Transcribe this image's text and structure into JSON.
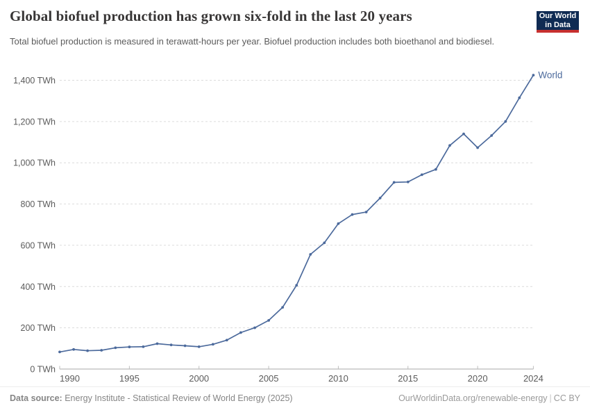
{
  "header": {
    "title": "Global biofuel production has grown six-fold in the last 20 years",
    "subtitle": "Total biofuel production is measured in terawatt-hours per year. Biofuel production includes both bioethanol and biodiesel.",
    "logo": {
      "line1": "Our World",
      "line2": "in Data"
    }
  },
  "footer": {
    "datasource_label": "Data source:",
    "datasource_text": " Energy Institute - Statistical Review of World Energy (2025)",
    "url": "OurWorldinData.org/renewable-energy",
    "separator": "|",
    "license": "CC BY"
  },
  "chart_data": {
    "type": "line",
    "title": "Global biofuel production has grown six-fold in the last 20 years",
    "unit": "TWh",
    "x": [
      1990,
      1991,
      1992,
      1993,
      1994,
      1995,
      1996,
      1997,
      1998,
      1999,
      2000,
      2001,
      2002,
      2003,
      2004,
      2005,
      2006,
      2007,
      2008,
      2009,
      2010,
      2011,
      2012,
      2013,
      2014,
      2015,
      2016,
      2017,
      2018,
      2019,
      2020,
      2021,
      2022,
      2023,
      2024
    ],
    "series": [
      {
        "name": "World",
        "values": [
          83,
          95,
          89,
          91,
          103,
          107,
          108,
          123,
          117,
          113,
          108,
          120,
          140,
          177,
          200,
          236,
          299,
          406,
          556,
          612,
          705,
          749,
          761,
          829,
          905,
          907,
          942,
          968,
          1084,
          1140,
          1073,
          1132,
          1200,
          1315,
          1425
        ]
      }
    ],
    "xticks": [
      1990,
      1995,
      2000,
      2005,
      2010,
      2015,
      2020,
      2024
    ],
    "yticks": [
      0,
      200,
      400,
      600,
      800,
      1000,
      1200,
      1400
    ],
    "ytick_suffix": " TWh",
    "xlabel": "",
    "ylabel": "",
    "ylim": [
      0,
      1400
    ],
    "xlim": [
      1990,
      2024
    ],
    "grid": "horizontal-dashed",
    "legend": "line-end-label",
    "line_color": "#4c6a9c"
  },
  "colors": {
    "line": "#4c6a9c",
    "grid": "#dcdcdc",
    "axis": "#a8a8a8",
    "tick_text": "#5b5b5b",
    "title_text": "#383636",
    "footer_text": "#858585",
    "logo_bg": "#0f2b53",
    "logo_stripe": "#c7302f"
  }
}
